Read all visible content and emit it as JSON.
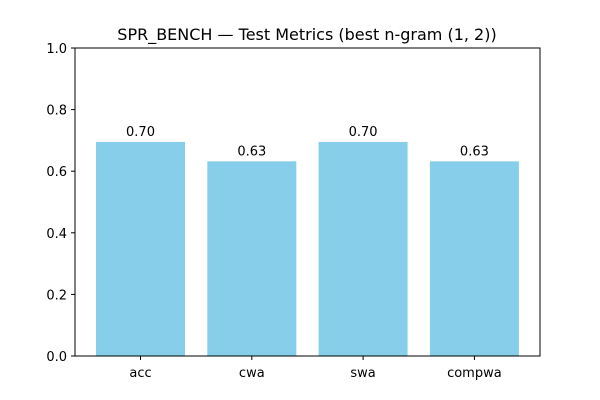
{
  "chart_data": {
    "type": "bar",
    "title": "SPR_BENCH — Test Metrics (best n-gram (1, 2))",
    "categories": [
      "acc",
      "cwa",
      "swa",
      "compwa"
    ],
    "values": [
      0.695,
      0.632,
      0.695,
      0.632
    ],
    "data_labels": [
      "0.70",
      "0.63",
      "0.70",
      "0.63"
    ],
    "ylim": [
      0,
      1.0
    ],
    "yticks": [
      0.0,
      0.2,
      0.4,
      0.6,
      0.8,
      1.0
    ],
    "ytick_labels": [
      "0.0",
      "0.2",
      "0.4",
      "0.6",
      "0.8",
      "1.0"
    ],
    "bar_color": "#87ceeb",
    "grid": false,
    "xlabel": "",
    "ylabel": ""
  }
}
